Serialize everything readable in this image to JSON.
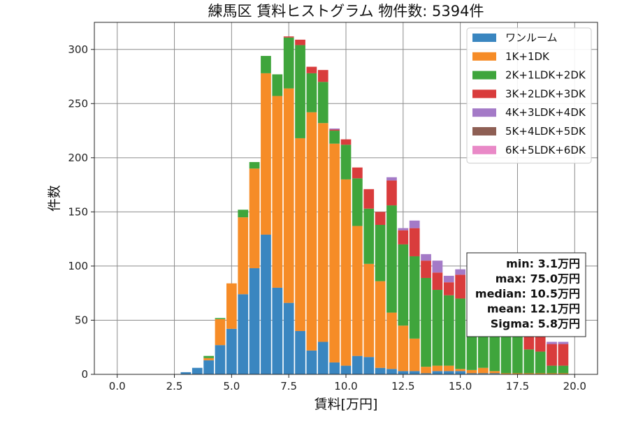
{
  "chart_data": {
    "type": "bar",
    "stacked": true,
    "title": "練馬区 賃料ヒストグラム 物件数: 5394件",
    "xlabel": "賃料[万円]",
    "ylabel": "件数",
    "xlim": [
      -1.0,
      21.0
    ],
    "ylim": [
      0,
      325
    ],
    "xticks": [
      0.0,
      2.5,
      5.0,
      7.5,
      10.0,
      12.5,
      15.0,
      17.5,
      20.0
    ],
    "xtick_labels": [
      "0.0",
      "2.5",
      "5.0",
      "7.5",
      "10.0",
      "12.5",
      "15.0",
      "17.5",
      "20.0"
    ],
    "yticks": [
      0,
      50,
      100,
      150,
      200,
      250,
      300
    ],
    "ytick_labels": [
      "0",
      "50",
      "100",
      "150",
      "200",
      "250",
      "300"
    ],
    "grid": true,
    "legend_position": "top-right",
    "bin_width": 0.5,
    "x": [
      3.0,
      3.5,
      4.0,
      4.5,
      5.0,
      5.5,
      6.0,
      6.5,
      7.0,
      7.5,
      8.0,
      8.5,
      9.0,
      9.5,
      10.0,
      10.5,
      11.0,
      11.5,
      12.0,
      12.5,
      13.0,
      13.5,
      14.0,
      14.5,
      15.0,
      15.5,
      16.0,
      16.5,
      17.0,
      17.5,
      18.0,
      18.5,
      19.0,
      19.5
    ],
    "series": [
      {
        "name": "ワンルーム",
        "color": "#3a86c0",
        "values": [
          2,
          6,
          13,
          27,
          42,
          74,
          98,
          129,
          80,
          66,
          40,
          22,
          30,
          11,
          8,
          17,
          16,
          6,
          5,
          3,
          3,
          1,
          3,
          3,
          3,
          1,
          1,
          1,
          0,
          0,
          0,
          0,
          0,
          0
        ]
      },
      {
        "name": "1K+1DK",
        "color": "#f68c27",
        "values": [
          0,
          0,
          2,
          24,
          42,
          71,
          92,
          149,
          177,
          198,
          178,
          220,
          202,
          202,
          172,
          120,
          86,
          80,
          52,
          42,
          30,
          6,
          5,
          5,
          2,
          3,
          5,
          2,
          1,
          1,
          1,
          1,
          1,
          1
        ]
      },
      {
        "name": "2K+1LDK+2DK",
        "color": "#3fa53c",
        "values": [
          0,
          0,
          2,
          1,
          0,
          7,
          6,
          16,
          20,
          47,
          86,
          36,
          38,
          12,
          32,
          44,
          51,
          52,
          99,
          75,
          76,
          82,
          70,
          65,
          65,
          66,
          56,
          48,
          42,
          38,
          22,
          20,
          7,
          7
        ]
      },
      {
        "name": "3K+2LDK+3DK",
        "color": "#d93c3c",
        "values": [
          0,
          0,
          0,
          0,
          0,
          0,
          0,
          0,
          0,
          1,
          5,
          6,
          11,
          1,
          5,
          10,
          18,
          12,
          23,
          13,
          26,
          16,
          16,
          12,
          22,
          15,
          20,
          18,
          12,
          14,
          14,
          14,
          20,
          20
        ]
      },
      {
        "name": "4K+3LDK+4DK",
        "color": "#a47ac7",
        "values": [
          0,
          0,
          0,
          0,
          0,
          0,
          0,
          0,
          0,
          0,
          0,
          0,
          0,
          1,
          0,
          0,
          0,
          0,
          3,
          2,
          7,
          6,
          11,
          6,
          5,
          3,
          3,
          2,
          2,
          2,
          2,
          2,
          2,
          2
        ]
      },
      {
        "name": "5K+4LDK+5DK",
        "color": "#8e5f54",
        "values": [
          0,
          0,
          0,
          0,
          0,
          0,
          0,
          0,
          0,
          0,
          0,
          0,
          0,
          0,
          0,
          0,
          0,
          0,
          0,
          0,
          0,
          0,
          0,
          0,
          0,
          0,
          0,
          0,
          0,
          0,
          0,
          0,
          0,
          0
        ]
      },
      {
        "name": "6K+5LDK+6DK",
        "color": "#e989c7",
        "values": [
          0,
          0,
          0,
          0,
          0,
          0,
          0,
          0,
          0,
          0,
          0,
          0,
          0,
          0,
          0,
          0,
          0,
          0,
          0,
          0,
          0,
          0,
          0,
          0,
          0,
          0,
          0,
          0,
          0,
          0,
          0,
          0,
          0,
          0
        ]
      }
    ],
    "stats_box": {
      "lines": [
        "min: 3.1万円",
        "max: 75.0万円",
        "median: 10.5万円",
        "mean: 12.1万円",
        "Sigma: 5.8万円"
      ]
    }
  }
}
